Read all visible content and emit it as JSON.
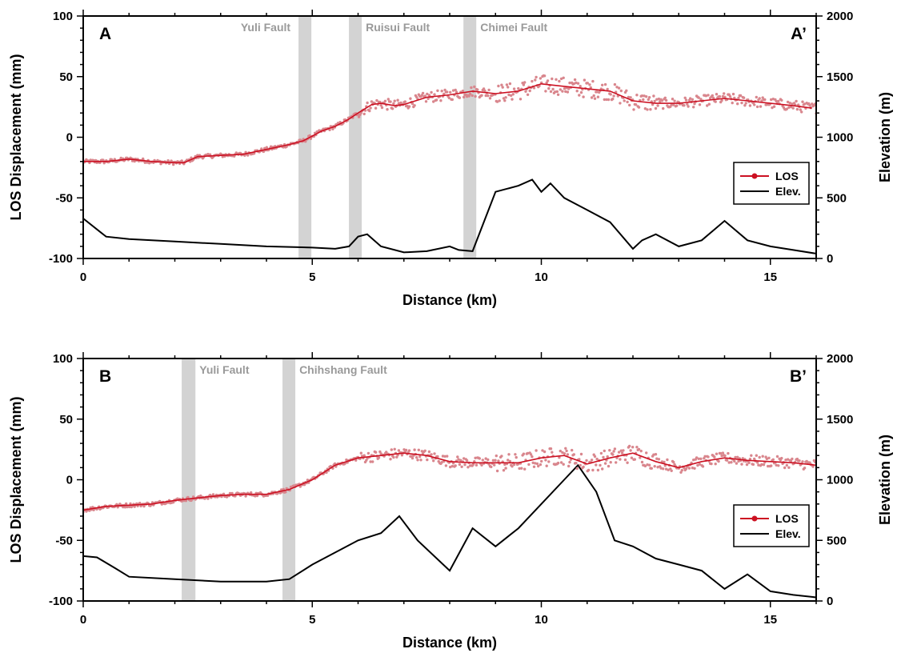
{
  "chart_data": [
    {
      "type": "line",
      "panel_id": "A",
      "start_label": "A",
      "end_label": "A’",
      "xlabel": "Distance (km)",
      "ylabel": "LOS Displacement (mm)",
      "y2label": "Elevation (m)",
      "xlim": [
        0,
        16
      ],
      "ylim": [
        -100,
        100
      ],
      "y2lim": [
        0,
        2000
      ],
      "xticks": [
        0,
        5,
        10,
        15
      ],
      "yticks": [
        -100,
        -50,
        0,
        50,
        100
      ],
      "y2ticks": [
        0,
        500,
        1000,
        1500,
        2000
      ],
      "faults": [
        {
          "name": "Yuli Fault",
          "start": 4.7,
          "end": 4.98
        },
        {
          "name": "Ruisui Fault",
          "start": 5.8,
          "end": 6.08
        },
        {
          "name": "Chimei Fault",
          "start": 8.3,
          "end": 8.58
        }
      ],
      "legend": {
        "position": "right",
        "entries": [
          "LOS",
          "Elev."
        ]
      },
      "colors": {
        "los_line": "#cc1122",
        "los_points": "#d9868d",
        "elevation": "#000000",
        "fault_band": "#d3d3d3"
      },
      "series": [
        {
          "name": "LOS",
          "axis": "left",
          "x": [
            0,
            0.5,
            1,
            1.5,
            2,
            2.2,
            2.5,
            3,
            3.5,
            4,
            4.5,
            4.8,
            5,
            5.2,
            5.5,
            5.8,
            6,
            6.3,
            6.5,
            6.8,
            7,
            7.5,
            8,
            8.5,
            9,
            9.5,
            10,
            10.5,
            11,
            11.5,
            12,
            12.5,
            13,
            13.5,
            14,
            14.5,
            15,
            15.5,
            15.9
          ],
          "values": [
            -20,
            -20,
            -18,
            -20,
            -21,
            -21,
            -16,
            -15,
            -14,
            -10,
            -6,
            -3,
            1,
            5,
            9,
            15,
            20,
            27,
            28,
            26,
            27,
            33,
            35,
            38,
            36,
            38,
            44,
            42,
            40,
            38,
            30,
            28,
            28,
            30,
            32,
            30,
            28,
            26,
            24
          ]
        },
        {
          "name": "Elev.",
          "axis": "right",
          "x": [
            0,
            0.5,
            1,
            2,
            3,
            4,
            5,
            5.5,
            5.8,
            6,
            6.2,
            6.5,
            7,
            7.5,
            8,
            8.2,
            8.5,
            9,
            9.5,
            9.8,
            10,
            10.2,
            10.5,
            11,
            11.5,
            12,
            12.2,
            12.5,
            13,
            13.5,
            14,
            14.5,
            15,
            15.5,
            16
          ],
          "values": [
            330,
            180,
            160,
            140,
            120,
            100,
            90,
            80,
            100,
            180,
            200,
            100,
            50,
            60,
            100,
            70,
            60,
            550,
            600,
            650,
            550,
            620,
            500,
            400,
            300,
            80,
            150,
            200,
            100,
            150,
            310,
            150,
            100,
            70,
            40
          ]
        }
      ]
    },
    {
      "type": "line",
      "panel_id": "B",
      "start_label": "B",
      "end_label": "B’",
      "xlabel": "Distance (km)",
      "ylabel": "LOS Displacement (mm)",
      "y2label": "Elevation (m)",
      "xlim": [
        0,
        16
      ],
      "ylim": [
        -100,
        100
      ],
      "y2lim": [
        0,
        2000
      ],
      "xticks": [
        0,
        5,
        10,
        15
      ],
      "yticks": [
        -100,
        -50,
        0,
        50,
        100
      ],
      "y2ticks": [
        0,
        500,
        1000,
        1500,
        2000
      ],
      "faults": [
        {
          "name": "Yuli Fault",
          "start": 2.15,
          "end": 2.45
        },
        {
          "name": "Chihshang Fault",
          "start": 4.35,
          "end": 4.63
        }
      ],
      "legend": {
        "position": "right",
        "entries": [
          "LOS",
          "Elev."
        ]
      },
      "colors": {
        "los_line": "#cc1122",
        "los_points": "#d9868d",
        "elevation": "#000000",
        "fault_band": "#d3d3d3"
      },
      "series": [
        {
          "name": "LOS",
          "axis": "left",
          "x": [
            0,
            0.5,
            1,
            1.5,
            2,
            2.5,
            3,
            3.5,
            4,
            4.5,
            5,
            5.5,
            6,
            6.5,
            7,
            7.5,
            8,
            8.5,
            9,
            9.5,
            10,
            10.5,
            11,
            11.5,
            12,
            12.5,
            13,
            13.5,
            14,
            14.5,
            15,
            15.5,
            16
          ],
          "values": [
            -25,
            -22,
            -21,
            -20,
            -17,
            -15,
            -13,
            -12,
            -12,
            -8,
            0,
            12,
            18,
            20,
            22,
            20,
            15,
            14,
            14,
            14,
            18,
            20,
            13,
            18,
            22,
            15,
            10,
            15,
            18,
            16,
            15,
            14,
            12
          ]
        },
        {
          "name": "Elev.",
          "axis": "right",
          "x": [
            0,
            0.3,
            0.7,
            1,
            2,
            3,
            4,
            4.5,
            5,
            5.5,
            6,
            6.5,
            6.9,
            7.3,
            8,
            8.5,
            9,
            9.5,
            10,
            10.5,
            10.8,
            11.2,
            11.6,
            12,
            12.5,
            13,
            13.5,
            14,
            14.5,
            15,
            15.5,
            16
          ],
          "values": [
            370,
            360,
            270,
            200,
            180,
            160,
            160,
            180,
            300,
            400,
            500,
            560,
            700,
            500,
            250,
            600,
            450,
            600,
            800,
            1000,
            1120,
            900,
            500,
            450,
            350,
            300,
            250,
            100,
            220,
            80,
            50,
            30
          ]
        }
      ]
    }
  ]
}
